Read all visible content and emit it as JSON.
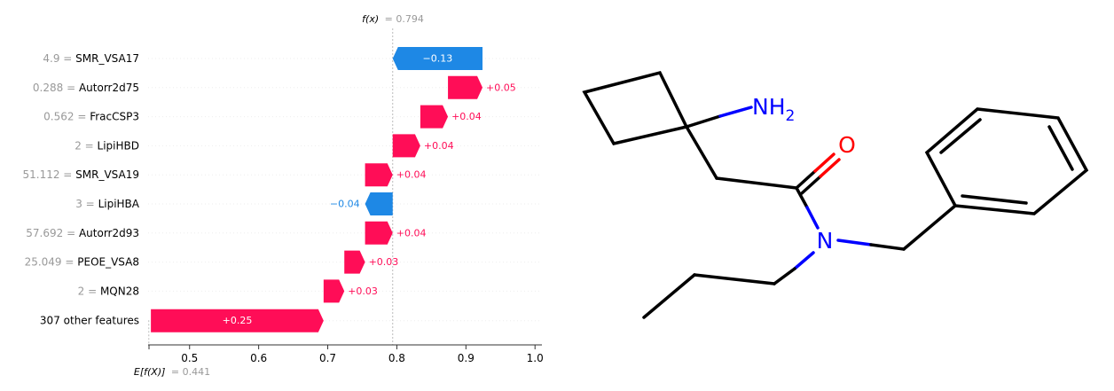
{
  "chart_data": {
    "type": "waterfall",
    "base_value": 0.441,
    "output_value": 0.794,
    "fx_label": "f(x)",
    "fx_value_text": "= 0.794",
    "efx_label": "E[f(X)]",
    "efx_value_text": "= 0.441",
    "xlim": [
      0.44,
      1.01
    ],
    "xticks": [
      {
        "value": 0.5,
        "label": "0.5"
      },
      {
        "value": 0.6,
        "label": "0.6"
      },
      {
        "value": 0.7,
        "label": "0.7"
      },
      {
        "value": 0.8,
        "label": "0.8"
      },
      {
        "value": 0.9,
        "label": "0.9"
      },
      {
        "value": 1.0,
        "label": "1.0"
      }
    ],
    "features": [
      {
        "value_label": "4.9 =",
        "name": "SMR_VSA17",
        "shap": -0.13,
        "shap_label": "−0.13"
      },
      {
        "value_label": "0.288 =",
        "name": "Autorr2d75",
        "shap": 0.05,
        "shap_label": "+0.05"
      },
      {
        "value_label": "0.562 =",
        "name": "FracCSP3",
        "shap": 0.04,
        "shap_label": "+0.04"
      },
      {
        "value_label": "2 =",
        "name": "LipiHBD",
        "shap": 0.04,
        "shap_label": "+0.04"
      },
      {
        "value_label": "51.112 =",
        "name": "SMR_VSA19",
        "shap": 0.04,
        "shap_label": "+0.04"
      },
      {
        "value_label": "3 =",
        "name": "LipiHBA",
        "shap": -0.04,
        "shap_label": "−0.04"
      },
      {
        "value_label": "57.692 =",
        "name": "Autorr2d93",
        "shap": 0.04,
        "shap_label": "+0.04"
      },
      {
        "value_label": "25.049 =",
        "name": "PEOE_VSA8",
        "shap": 0.03,
        "shap_label": "+0.03"
      },
      {
        "value_label": "2 =",
        "name": "MQN28",
        "shap": 0.03,
        "shap_label": "+0.03"
      },
      {
        "value_label": "",
        "name": "307 other features",
        "shap": 0.25,
        "shap_label": "+0.25"
      }
    ],
    "colors": {
      "positive": "#ff0d57",
      "negative": "#1e88e5",
      "muted": "#999999",
      "text": "#000000"
    }
  },
  "molecule": {
    "atom_labels": {
      "amine": "NH",
      "amine_sub": "2",
      "oxygen": "O",
      "nitrogen": "N"
    },
    "colors": {
      "bond": "#000000",
      "nitrogen": "#0000ff",
      "oxygen": "#ff0000"
    }
  }
}
